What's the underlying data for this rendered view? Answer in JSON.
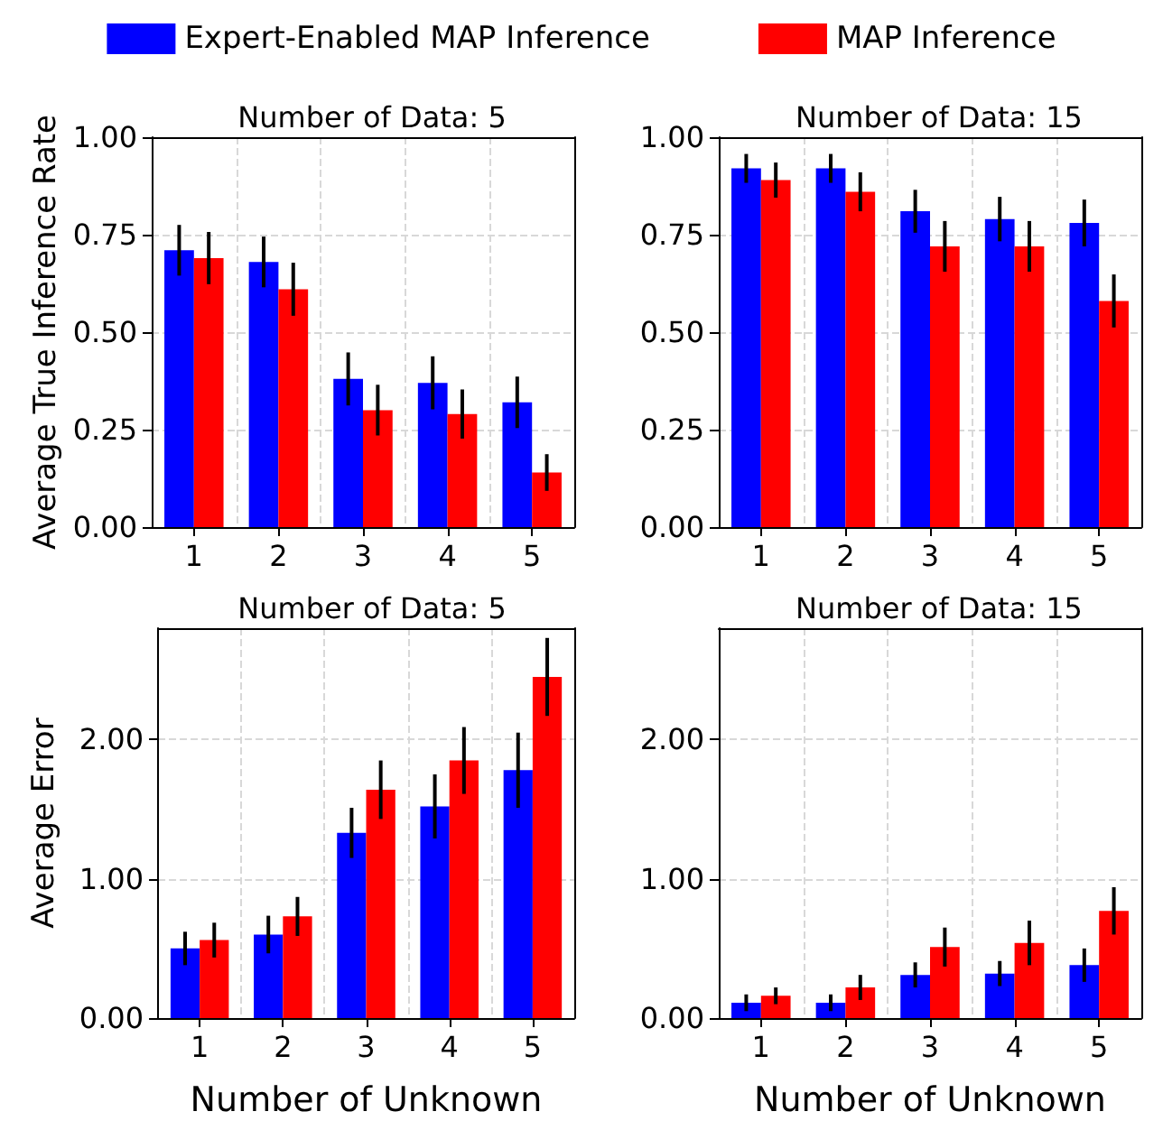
{
  "chart_data": [
    {
      "type": "bar",
      "title": "Number of Data: 5",
      "ylabel": "Average True Inference Rate",
      "categories": [
        "1",
        "2",
        "3",
        "4",
        "5"
      ],
      "legend": "top",
      "grid": true,
      "ylim": [
        0,
        1.0
      ],
      "yticks": [
        {
          "value": 0,
          "label": "0.00"
        },
        {
          "value": 0.25,
          "label": "0.25"
        },
        {
          "value": 0.5,
          "label": "0.50"
        },
        {
          "value": 0.75,
          "label": "0.75"
        },
        {
          "value": 1.0,
          "label": "1.00"
        }
      ],
      "series": [
        {
          "name": "Expert-Enabled MAP Inference",
          "color": "#0000ff",
          "values": [
            0.71,
            0.68,
            0.38,
            0.37,
            0.32
          ],
          "errors": [
            0.065,
            0.065,
            0.068,
            0.068,
            0.066
          ]
        },
        {
          "name": "MAP Inference",
          "color": "#ff0000",
          "values": [
            0.69,
            0.61,
            0.3,
            0.29,
            0.14
          ],
          "errors": [
            0.067,
            0.068,
            0.065,
            0.063,
            0.047
          ]
        }
      ]
    },
    {
      "type": "bar",
      "title": "Number of Data: 15",
      "categories": [
        "1",
        "2",
        "3",
        "4",
        "5"
      ],
      "grid": true,
      "ylim": [
        0,
        1.0
      ],
      "yticks": [
        {
          "value": 0,
          "label": "0.00"
        },
        {
          "value": 0.25,
          "label": "0.25"
        },
        {
          "value": 0.5,
          "label": "0.50"
        },
        {
          "value": 0.75,
          "label": "0.75"
        },
        {
          "value": 1.0,
          "label": "1.00"
        }
      ],
      "series": [
        {
          "color": "#0000ff",
          "values": [
            0.92,
            0.92,
            0.81,
            0.79,
            0.78
          ],
          "errors": [
            0.037,
            0.037,
            0.055,
            0.057,
            0.06
          ]
        },
        {
          "color": "#ff0000",
          "values": [
            0.89,
            0.86,
            0.72,
            0.72,
            0.58
          ],
          "errors": [
            0.045,
            0.05,
            0.065,
            0.065,
            0.068
          ]
        }
      ]
    },
    {
      "type": "bar",
      "title": "Number of Data: 5",
      "xlabel": "Number of Unknown",
      "ylabel": "Average Error",
      "categories": [
        "1",
        "2",
        "3",
        "4",
        "5"
      ],
      "grid": true,
      "ylim": [
        0,
        2.8
      ],
      "yticks": [
        {
          "value": 0,
          "label": "0.00"
        },
        {
          "value": 1,
          "label": "1.00"
        },
        {
          "value": 2,
          "label": "2.00"
        }
      ],
      "series": [
        {
          "color": "#0000ff",
          "values": [
            0.5,
            0.6,
            1.33,
            1.52,
            1.78
          ],
          "errors": [
            0.12,
            0.135,
            0.18,
            0.23,
            0.27
          ]
        },
        {
          "color": "#ff0000",
          "values": [
            0.56,
            0.73,
            1.64,
            1.85,
            2.45
          ],
          "errors": [
            0.125,
            0.14,
            0.21,
            0.24,
            0.28
          ]
        }
      ]
    },
    {
      "type": "bar",
      "title": "Number of Data: 15",
      "xlabel": "Number of Unknown",
      "categories": [
        "1",
        "2",
        "3",
        "4",
        "5"
      ],
      "grid": true,
      "ylim": [
        0,
        2.8
      ],
      "yticks": [
        {
          "value": 0,
          "label": "0.00"
        },
        {
          "value": 1,
          "label": "1.00"
        },
        {
          "value": 2,
          "label": "2.00"
        }
      ],
      "series": [
        {
          "color": "#0000ff",
          "values": [
            0.11,
            0.11,
            0.31,
            0.32,
            0.38
          ],
          "errors": [
            0.06,
            0.06,
            0.09,
            0.09,
            0.12
          ]
        },
        {
          "color": "#ff0000",
          "values": [
            0.16,
            0.22,
            0.51,
            0.54,
            0.77
          ],
          "errors": [
            0.06,
            0.09,
            0.14,
            0.16,
            0.17
          ]
        }
      ]
    }
  ]
}
